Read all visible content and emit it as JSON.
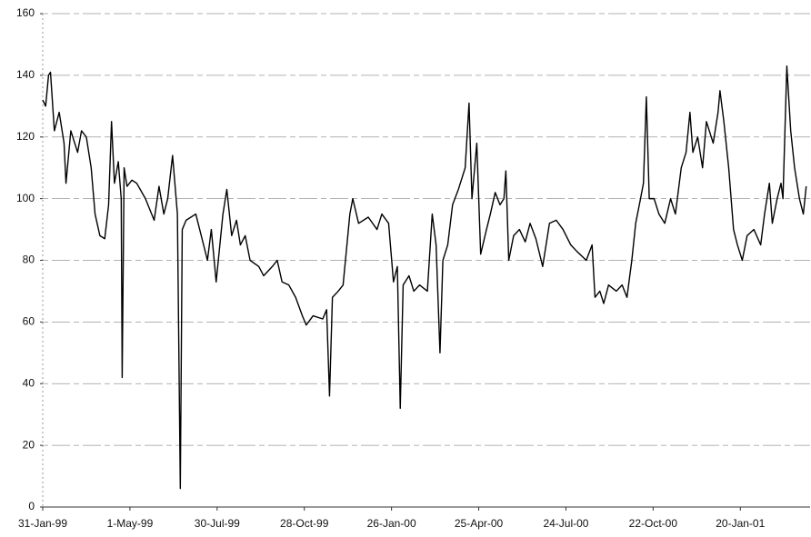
{
  "chart_data": {
    "type": "line",
    "color": "#000000",
    "grid": true,
    "x": [
      "1999-01-31",
      "1999-02-03",
      "1999-02-06",
      "1999-02-08",
      "1999-02-12",
      "1999-02-17",
      "1999-02-22",
      "1999-02-24",
      "1999-03-01",
      "1999-03-08",
      "1999-03-12",
      "1999-03-17",
      "1999-03-22",
      "1999-03-26",
      "1999-03-31",
      "1999-04-05",
      "1999-04-09",
      "1999-04-12",
      "1999-04-15",
      "1999-04-19",
      "1999-04-22",
      "1999-04-23",
      "1999-04-25",
      "1999-04-28",
      "1999-05-03",
      "1999-05-08",
      "1999-05-17",
      "1999-05-26",
      "1999-05-31",
      "1999-06-05",
      "1999-06-09",
      "1999-06-14",
      "1999-06-19",
      "1999-06-22",
      "1999-06-24",
      "1999-06-28",
      "1999-07-08",
      "1999-07-12",
      "1999-07-20",
      "1999-07-24",
      "1999-07-29",
      "1999-08-05",
      "1999-08-09",
      "1999-08-14",
      "1999-08-19",
      "1999-08-23",
      "1999-08-28",
      "1999-09-02",
      "1999-09-11",
      "1999-09-16",
      "1999-09-25",
      "1999-09-30",
      "1999-10-05",
      "1999-10-12",
      "1999-10-19",
      "1999-10-26",
      "1999-10-30",
      "1999-11-06",
      "1999-11-16",
      "1999-11-20",
      "1999-11-23",
      "1999-11-26",
      "1999-12-02",
      "1999-12-07",
      "1999-12-14",
      "1999-12-17",
      "1999-12-23",
      "2000-01-02",
      "2000-01-11",
      "2000-01-16",
      "2000-01-23",
      "2000-01-28",
      "2000-02-01",
      "2000-02-04",
      "2000-02-07",
      "2000-02-13",
      "2000-02-18",
      "2000-02-24",
      "2000-03-03",
      "2000-03-08",
      "2000-03-12",
      "2000-03-16",
      "2000-03-19",
      "2000-03-24",
      "2000-03-29",
      "2000-04-04",
      "2000-04-11",
      "2000-04-15",
      "2000-04-18",
      "2000-04-23",
      "2000-04-27",
      "2000-05-03",
      "2000-05-07",
      "2000-05-12",
      "2000-05-17",
      "2000-05-21",
      "2000-05-23",
      "2000-05-26",
      "2000-05-31",
      "2000-06-06",
      "2000-06-12",
      "2000-06-17",
      "2000-06-23",
      "2000-06-30",
      "2000-07-07",
      "2000-07-14",
      "2000-07-21",
      "2000-07-29",
      "2000-08-04",
      "2000-08-14",
      "2000-08-20",
      "2000-08-23",
      "2000-08-28",
      "2000-09-01",
      "2000-09-06",
      "2000-09-14",
      "2000-09-20",
      "2000-09-25",
      "2000-09-30",
      "2000-10-04",
      "2000-10-09",
      "2000-10-12",
      "2000-10-15",
      "2000-10-18",
      "2000-10-23",
      "2000-10-28",
      "2000-11-03",
      "2000-11-09",
      "2000-11-14",
      "2000-11-20",
      "2000-11-25",
      "2000-11-29",
      "2000-12-02",
      "2000-12-07",
      "2000-12-12",
      "2000-12-16",
      "2000-12-23",
      "2000-12-28",
      "2000-12-30",
      "2001-01-03",
      "2001-01-08",
      "2001-01-13",
      "2001-01-17",
      "2001-01-22",
      "2001-01-27",
      "2001-02-03",
      "2001-02-10",
      "2001-02-14",
      "2001-02-19",
      "2001-02-22",
      "2001-02-27",
      "2001-03-03",
      "2001-03-05",
      "2001-03-09",
      "2001-03-13",
      "2001-03-17",
      "2001-03-22",
      "2001-03-26",
      "2001-03-29"
    ],
    "values": [
      132,
      130,
      140,
      141,
      122,
      128,
      118,
      105,
      122,
      115,
      122,
      120,
      110,
      95,
      88,
      87,
      98,
      125,
      105,
      112,
      100,
      42,
      110,
      104,
      106,
      105,
      100,
      93,
      104,
      95,
      100,
      114,
      95,
      6,
      90,
      93,
      95,
      90,
      80,
      90,
      73,
      95,
      103,
      88,
      93,
      85,
      88,
      80,
      78,
      75,
      78,
      80,
      73,
      72,
      68,
      62,
      59,
      62,
      61,
      64,
      36,
      68,
      70,
      72,
      95,
      100,
      92,
      94,
      90,
      95,
      92,
      73,
      78,
      32,
      72,
      75,
      70,
      72,
      70,
      95,
      85,
      50,
      80,
      85,
      98,
      103,
      110,
      131,
      100,
      118,
      82,
      90,
      95,
      102,
      98,
      100,
      109,
      80,
      88,
      90,
      86,
      92,
      87,
      78,
      92,
      93,
      90,
      85,
      83,
      80,
      85,
      68,
      70,
      66,
      72,
      70,
      72,
      68,
      80,
      92,
      100,
      105,
      133,
      100,
      100,
      95,
      92,
      100,
      95,
      110,
      115,
      128,
      115,
      120,
      110,
      125,
      118,
      128,
      135,
      125,
      110,
      90,
      85,
      80,
      88,
      90,
      85,
      95,
      105,
      92,
      100,
      105,
      100,
      143,
      122,
      110,
      100,
      95,
      104
    ],
    "xlim": [
      "1999-01-31",
      "2001-04-02"
    ],
    "xticks": [
      {
        "value": "1999-01-31",
        "label": "31-Jan-99"
      },
      {
        "value": "1999-05-01",
        "label": "1-May-99"
      },
      {
        "value": "1999-07-30",
        "label": "30-Jul-99"
      },
      {
        "value": "1999-10-28",
        "label": "28-Oct-99"
      },
      {
        "value": "2000-01-26",
        "label": "26-Jan-00"
      },
      {
        "value": "2000-04-25",
        "label": "25-Apr-00"
      },
      {
        "value": "2000-07-24",
        "label": "24-Jul-00"
      },
      {
        "value": "2000-10-22",
        "label": "22-Oct-00"
      },
      {
        "value": "2001-01-20",
        "label": "20-Jan-01"
      }
    ],
    "ylim": [
      0,
      160
    ],
    "yticks": [
      0,
      20,
      40,
      60,
      80,
      100,
      120,
      140,
      160
    ]
  }
}
